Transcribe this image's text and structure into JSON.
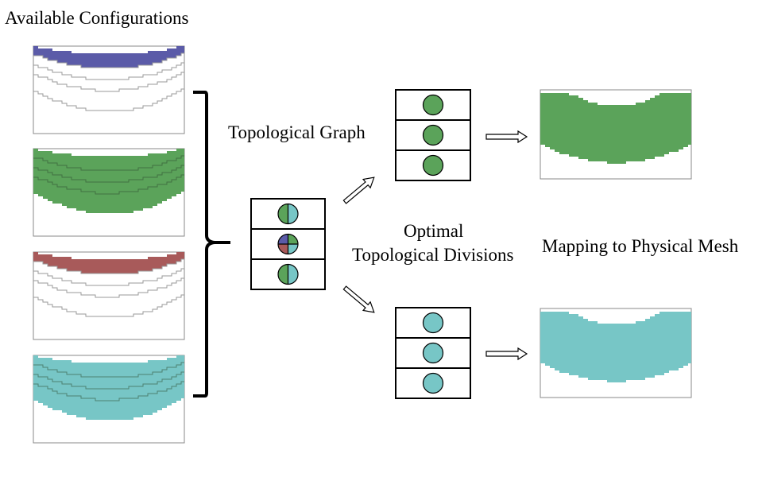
{
  "labels": {
    "available_configurations": "Available Configurations",
    "topological_graph": "Topological Graph",
    "optimal_line1": "Optimal",
    "optimal_line2": "Topological Divisions",
    "mapping": "Mapping to Physical Mesh"
  },
  "colors": {
    "blue": "#5b5ba8",
    "green": "#5ba35a",
    "red": "#a85a5a",
    "cyan": "#77c6c6",
    "outline": "#9a9a9a",
    "border": "#000000"
  },
  "configurations": [
    {
      "name": "config-blue",
      "fill": "blue",
      "highlight": "band1"
    },
    {
      "name": "config-green",
      "fill": "green",
      "highlight": "all"
    },
    {
      "name": "config-red",
      "fill": "red",
      "highlight": "band1"
    },
    {
      "name": "config-cyan",
      "fill": "cyan",
      "highlight": "all"
    }
  ],
  "graph_rows": [
    [
      "green",
      "cyan"
    ],
    [
      "blue",
      "green",
      "red",
      "cyan"
    ],
    [
      "green",
      "cyan"
    ]
  ],
  "optimal_top": [
    "green",
    "green",
    "green"
  ],
  "optimal_bottom": [
    "cyan",
    "cyan",
    "cyan"
  ],
  "mesh_top": "green",
  "mesh_bottom": "cyan"
}
